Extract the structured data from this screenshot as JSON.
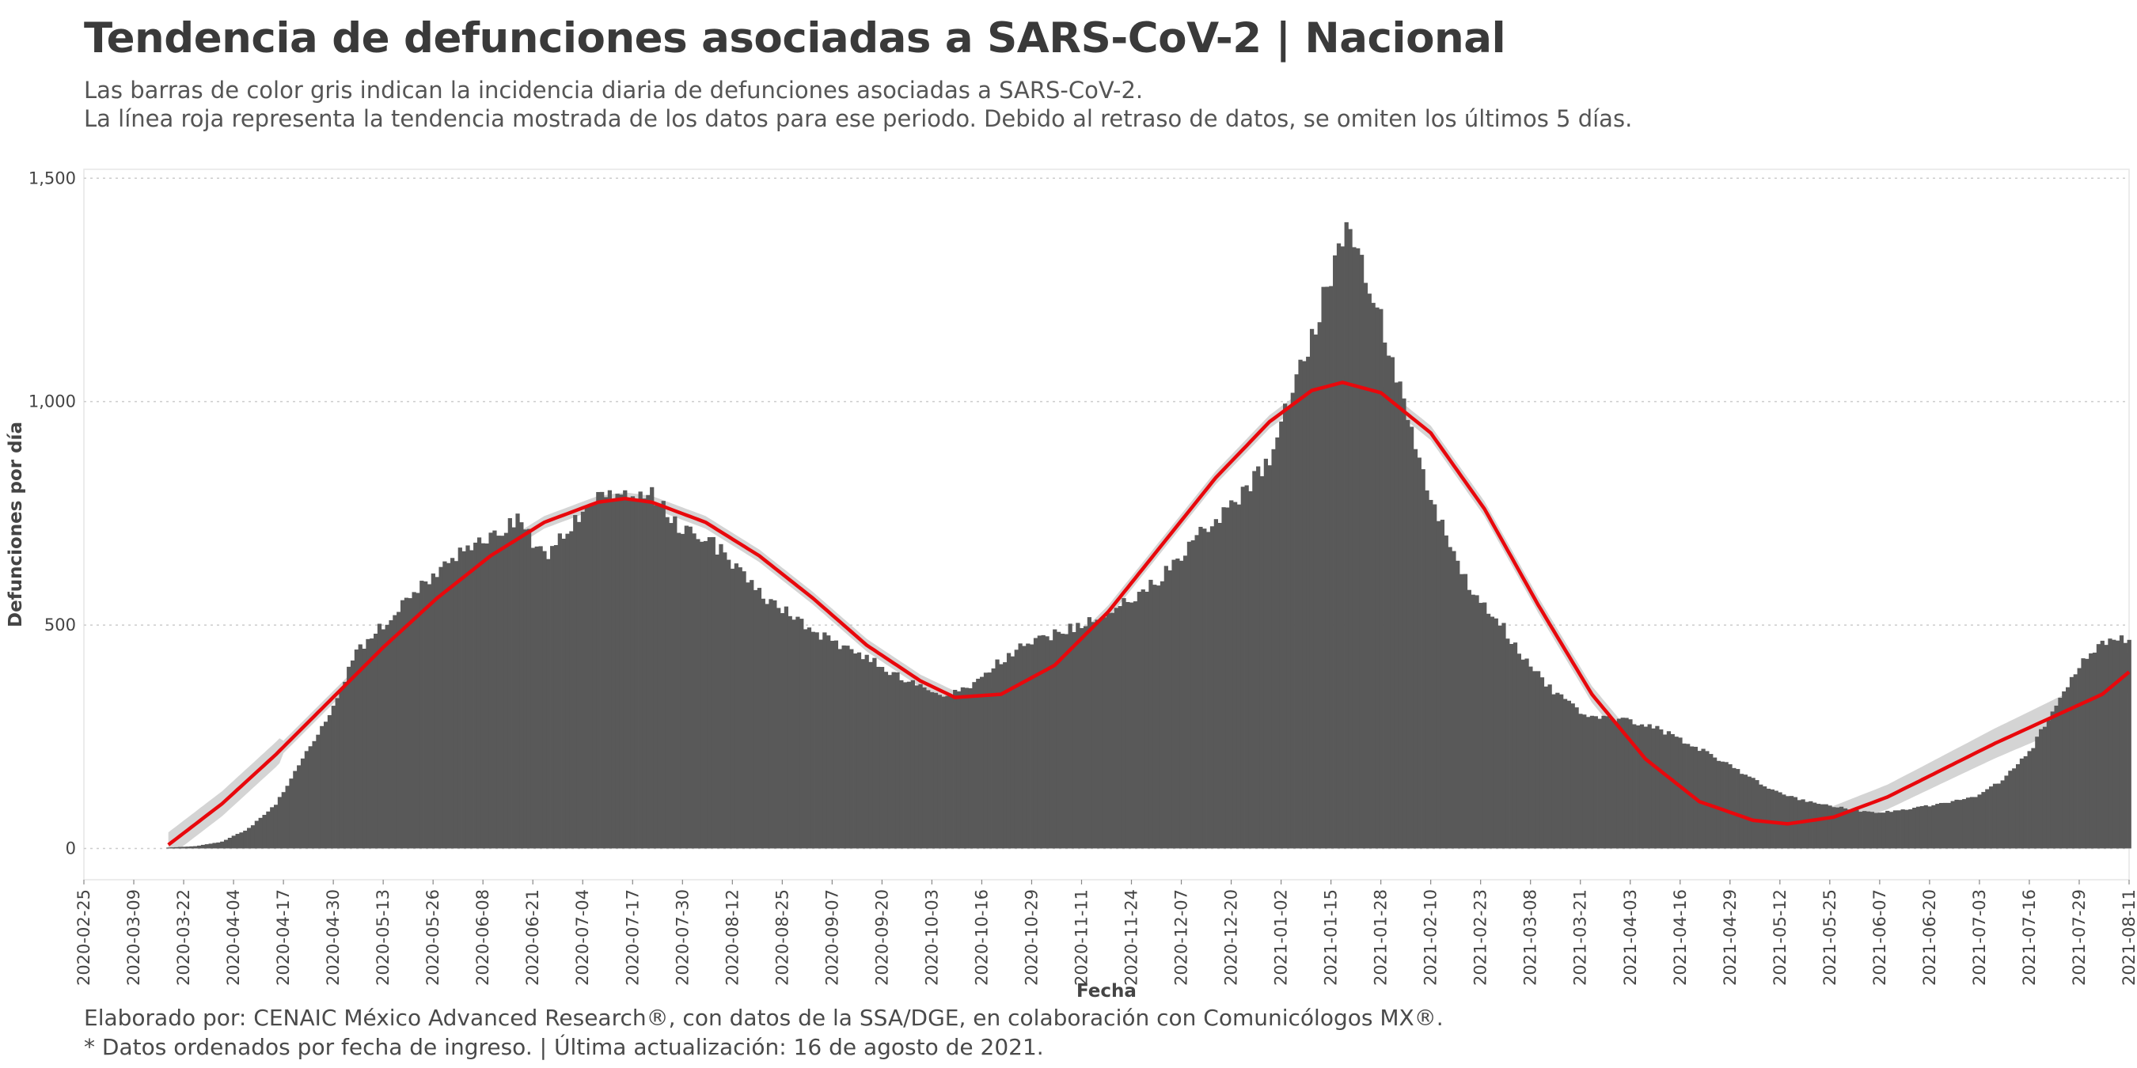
{
  "header": {
    "title": "Tendencia de defunciones asociadas a SARS-CoV-2 | Nacional",
    "subtitle_line1": "Las barras de color gris indican la incidencia diaria de defunciones asociadas a SARS-CoV-2.",
    "subtitle_line2": "La línea roja representa la tendencia mostrada de los datos para ese periodo. Debido al retraso de datos, se omiten los últimos 5 días."
  },
  "footer": {
    "caption_line1": "Elaborado por: CENAIC México Advanced Research®, con datos de la SSA/DGE, en colaboración con Comunicólogos MX®.",
    "caption_line2": "* Datos ordenados por fecha de ingreso. | Última actualización: 16 de agosto de 2021."
  },
  "colors": {
    "bars": "#595959",
    "trend_line": "#e8080c",
    "confidence_band": "#bdbdbd",
    "gridline": "#cccccc"
  },
  "chart_data": {
    "type": "bar",
    "xlabel": "Fecha",
    "ylabel": "Defunciones por día",
    "ylim": [
      -70,
      1520
    ],
    "xlim": [
      "2020-02-25",
      "2021-08-11"
    ],
    "y_ticks": [
      0,
      500,
      1000,
      1500
    ],
    "y_tick_labels": [
      "0",
      "500",
      "1,000",
      "1,500"
    ],
    "x_tick_labels": [
      "2020-02-25",
      "2020-03-09",
      "2020-03-22",
      "2020-04-04",
      "2020-04-17",
      "2020-04-30",
      "2020-05-13",
      "2020-05-26",
      "2020-06-08",
      "2020-06-21",
      "2020-07-04",
      "2020-07-17",
      "2020-07-30",
      "2020-08-12",
      "2020-08-25",
      "2020-09-07",
      "2020-09-20",
      "2020-10-03",
      "2020-10-16",
      "2020-10-29",
      "2020-11-11",
      "2020-11-24",
      "2020-12-07",
      "2020-12-20",
      "2021-01-02",
      "2021-01-15",
      "2021-01-28",
      "2021-02-10",
      "2021-02-23",
      "2021-03-08",
      "2021-03-21",
      "2021-04-03",
      "2021-04-16",
      "2021-04-29",
      "2021-05-12",
      "2021-05-25",
      "2021-06-07",
      "2021-06-20",
      "2021-07-03",
      "2021-07-16",
      "2021-07-29",
      "2021-08-11"
    ],
    "grid": "horizontal dotted",
    "series": [
      {
        "kind": "bars",
        "start_date": "2020-03-18",
        "end_date": "2021-08-11",
        "interpolation": "linear between points; every day from start_date to end_date is one bar",
        "points": [
          [
            "2020-03-18",
            2
          ],
          [
            "2020-03-25",
            5
          ],
          [
            "2020-04-01",
            15
          ],
          [
            "2020-04-08",
            45
          ],
          [
            "2020-04-15",
            100
          ],
          [
            "2020-04-22",
            200
          ],
          [
            "2020-04-29",
            300
          ],
          [
            "2020-05-06",
            440
          ],
          [
            "2020-05-13",
            500
          ],
          [
            "2020-05-20",
            560
          ],
          [
            "2020-05-27",
            620
          ],
          [
            "2020-06-03",
            670
          ],
          [
            "2020-06-10",
            700
          ],
          [
            "2020-06-17",
            740
          ],
          [
            "2020-06-24",
            650
          ],
          [
            "2020-07-01",
            720
          ],
          [
            "2020-07-08",
            800
          ],
          [
            "2020-07-15",
            790
          ],
          [
            "2020-07-22",
            790
          ],
          [
            "2020-07-29",
            720
          ],
          [
            "2020-08-05",
            700
          ],
          [
            "2020-08-12",
            640
          ],
          [
            "2020-08-19",
            570
          ],
          [
            "2020-08-26",
            530
          ],
          [
            "2020-09-02",
            490
          ],
          [
            "2020-09-09",
            450
          ],
          [
            "2020-09-16",
            430
          ],
          [
            "2020-09-23",
            390
          ],
          [
            "2020-09-30",
            360
          ],
          [
            "2020-10-07",
            340
          ],
          [
            "2020-10-14",
            370
          ],
          [
            "2020-10-21",
            420
          ],
          [
            "2020-10-28",
            460
          ],
          [
            "2020-11-04",
            480
          ],
          [
            "2020-11-11",
            500
          ],
          [
            "2020-11-18",
            530
          ],
          [
            "2020-11-25",
            560
          ],
          [
            "2020-12-02",
            610
          ],
          [
            "2020-12-09",
            680
          ],
          [
            "2020-12-16",
            740
          ],
          [
            "2020-12-23",
            790
          ],
          [
            "2020-12-30",
            870
          ],
          [
            "2021-01-06",
            1060
          ],
          [
            "2021-01-10",
            1150
          ],
          [
            "2021-01-14",
            1260
          ],
          [
            "2021-01-18",
            1380
          ],
          [
            "2021-01-21",
            1360
          ],
          [
            "2021-01-25",
            1250
          ],
          [
            "2021-01-29",
            1160
          ],
          [
            "2021-02-02",
            1020
          ],
          [
            "2021-02-06",
            900
          ],
          [
            "2021-02-10",
            780
          ],
          [
            "2021-02-15",
            680
          ],
          [
            "2021-02-20",
            580
          ],
          [
            "2021-02-27",
            520
          ],
          [
            "2021-03-06",
            430
          ],
          [
            "2021-03-13",
            360
          ],
          [
            "2021-03-20",
            310
          ],
          [
            "2021-03-27",
            290
          ],
          [
            "2021-04-03",
            285
          ],
          [
            "2021-04-10",
            270
          ],
          [
            "2021-04-17",
            240
          ],
          [
            "2021-04-24",
            210
          ],
          [
            "2021-05-01",
            175
          ],
          [
            "2021-05-08",
            140
          ],
          [
            "2021-05-15",
            115
          ],
          [
            "2021-05-22",
            100
          ],
          [
            "2021-05-29",
            90
          ],
          [
            "2021-06-05",
            80
          ],
          [
            "2021-06-12",
            85
          ],
          [
            "2021-06-19",
            95
          ],
          [
            "2021-06-26",
            105
          ],
          [
            "2021-07-03",
            120
          ],
          [
            "2021-07-10",
            160
          ],
          [
            "2021-07-17",
            230
          ],
          [
            "2021-07-24",
            340
          ],
          [
            "2021-07-31",
            430
          ],
          [
            "2021-08-04",
            460
          ],
          [
            "2021-08-11",
            470
          ]
        ]
      },
      {
        "kind": "trend_line",
        "points": [
          [
            "2020-03-18",
            8
          ],
          [
            "2020-04-01",
            100
          ],
          [
            "2020-04-15",
            210
          ],
          [
            "2020-04-29",
            330
          ],
          [
            "2020-05-13",
            450
          ],
          [
            "2020-05-27",
            560
          ],
          [
            "2020-06-10",
            655
          ],
          [
            "2020-06-24",
            730
          ],
          [
            "2020-07-08",
            775
          ],
          [
            "2020-07-15",
            783
          ],
          [
            "2020-07-22",
            775
          ],
          [
            "2020-08-05",
            730
          ],
          [
            "2020-08-19",
            655
          ],
          [
            "2020-09-02",
            560
          ],
          [
            "2020-09-16",
            455
          ],
          [
            "2020-09-30",
            375
          ],
          [
            "2020-10-09",
            338
          ],
          [
            "2020-10-21",
            345
          ],
          [
            "2020-11-04",
            410
          ],
          [
            "2020-11-18",
            530
          ],
          [
            "2020-12-02",
            680
          ],
          [
            "2020-12-16",
            830
          ],
          [
            "2020-12-30",
            955
          ],
          [
            "2021-01-10",
            1025
          ],
          [
            "2021-01-18",
            1043
          ],
          [
            "2021-01-28",
            1020
          ],
          [
            "2021-02-10",
            930
          ],
          [
            "2021-02-24",
            760
          ],
          [
            "2021-03-10",
            545
          ],
          [
            "2021-03-24",
            345
          ],
          [
            "2021-04-07",
            200
          ],
          [
            "2021-04-21",
            105
          ],
          [
            "2021-05-05",
            63
          ],
          [
            "2021-05-14",
            55
          ],
          [
            "2021-05-26",
            70
          ],
          [
            "2021-06-09",
            115
          ],
          [
            "2021-06-23",
            175
          ],
          [
            "2021-07-07",
            235
          ],
          [
            "2021-07-21",
            290
          ],
          [
            "2021-08-04",
            345
          ],
          [
            "2021-08-11",
            395
          ]
        ]
      }
    ]
  }
}
